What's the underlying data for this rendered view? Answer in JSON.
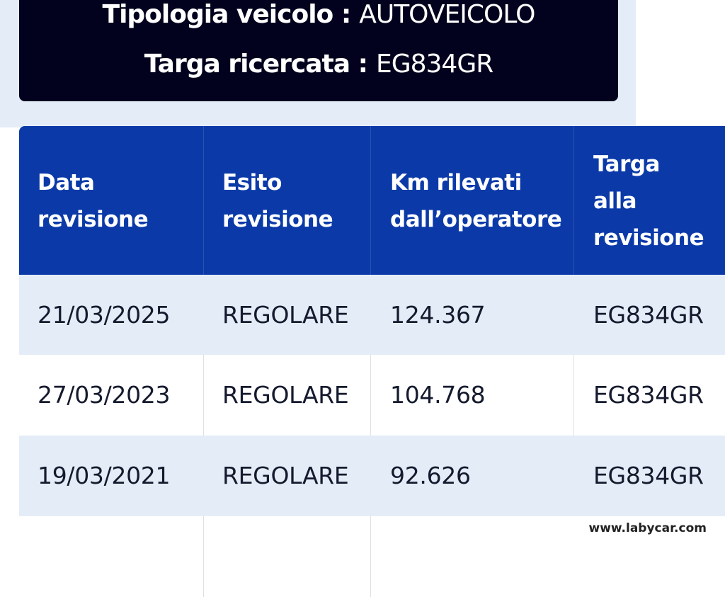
{
  "vehicle_info": {
    "type_label": "Tipologia veicolo :",
    "type_value": "AUTOVEICOLO",
    "plate_label": "Targa ricercata :",
    "plate_value": "EG834GR"
  },
  "table": {
    "headers": [
      [
        "Data",
        "revisione"
      ],
      [
        "Esito",
        "revisione"
      ],
      [
        "Km rilevati",
        "dall’operatore"
      ],
      [
        "Targa",
        "alla",
        "revisione"
      ]
    ],
    "rows": [
      [
        "21/03/2025",
        "REGOLARE",
        "124.367",
        "EG834GR"
      ],
      [
        "27/03/2023",
        "REGOLARE",
        "104.768",
        "EG834GR"
      ],
      [
        "19/03/2021",
        "REGOLARE",
        "92.626",
        "EG834GR"
      ]
    ]
  },
  "watermark": "www.labycar.com",
  "colors": {
    "header": "#0b3aa8",
    "info_box": "#02021e",
    "row_alt": "#e4edf7"
  }
}
